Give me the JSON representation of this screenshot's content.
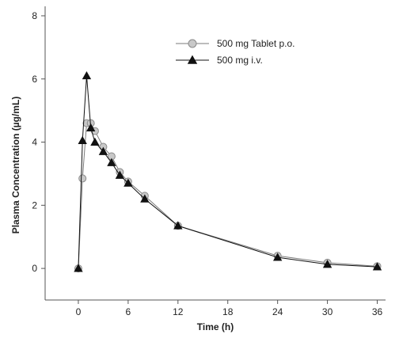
{
  "chart_data": {
    "type": "line",
    "title": "",
    "xlabel": "Time (h)",
    "ylabel": "Plasma Concentration (µg/mL)",
    "xlim": [
      -4,
      37
    ],
    "ylim": [
      -1,
      8.3
    ],
    "xticks": [
      0,
      6,
      12,
      18,
      24,
      30,
      36
    ],
    "yticks": [
      0,
      2,
      4,
      6,
      8
    ],
    "grid": false,
    "legend_position": "top-right",
    "series": [
      {
        "name": "500 mg Tablet p.o.",
        "marker": "circle",
        "marker_fill": "#c8c8c8",
        "marker_stroke": "#8a8a8a",
        "line_color": "#7a7a7a",
        "x": [
          0,
          0.5,
          1,
          1.5,
          2,
          3,
          4,
          5,
          6,
          8,
          12,
          24,
          30,
          36
        ],
        "y": [
          0.0,
          2.85,
          4.6,
          4.6,
          4.35,
          3.85,
          3.55,
          3.05,
          2.75,
          2.3,
          1.35,
          0.4,
          0.18,
          0.07
        ]
      },
      {
        "name": "500 mg i.v.",
        "marker": "triangle",
        "marker_fill": "#111111",
        "marker_stroke": "#111111",
        "line_color": "#111111",
        "x": [
          0,
          0.5,
          1,
          1.5,
          2,
          3,
          4,
          5,
          6,
          8,
          12,
          24,
          30,
          36
        ],
        "y": [
          0.0,
          4.05,
          6.1,
          4.45,
          4.0,
          3.7,
          3.35,
          2.95,
          2.7,
          2.2,
          1.35,
          0.35,
          0.13,
          0.05
        ]
      }
    ]
  }
}
